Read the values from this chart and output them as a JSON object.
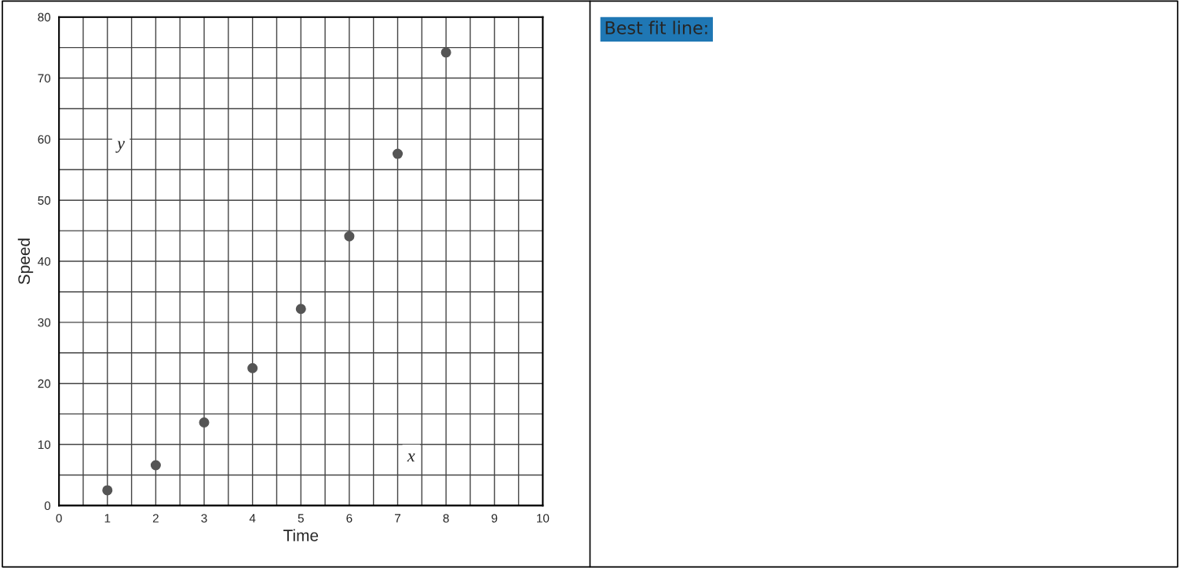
{
  "chart_data": {
    "type": "scatter",
    "xlabel": "Time",
    "ylabel": "Speed",
    "x": [
      1,
      2,
      3,
      4,
      5,
      6,
      7,
      8
    ],
    "series": [
      {
        "color": "#555555",
        "values": [
          2.5,
          6.6,
          13.6,
          22.5,
          32.2,
          44.1,
          57.6,
          74.2
        ]
      }
    ],
    "xlim": [
      0,
      10
    ],
    "ylim": [
      0,
      80
    ],
    "xticks": [
      0,
      {
        "value": 0.5,
        "label": null
      },
      1,
      {
        "value": 1.5,
        "label": null
      },
      2,
      {
        "value": 2.5,
        "label": null
      },
      3,
      {
        "value": 3.5,
        "label": null
      },
      4,
      {
        "value": 4.5,
        "label": null
      },
      5,
      {
        "value": 5.5,
        "label": null
      },
      6,
      {
        "value": 6.5,
        "label": null
      },
      7,
      {
        "value": 7.5,
        "label": null
      },
      8,
      {
        "value": 8.5,
        "label": null
      },
      9,
      {
        "value": 9.5,
        "label": null
      },
      10
    ],
    "yticks": [
      0,
      {
        "value": 5,
        "label": null
      },
      10,
      {
        "value": 15,
        "label": null
      },
      20,
      {
        "value": 25,
        "label": null
      },
      30,
      {
        "value": 35,
        "label": null
      },
      40,
      {
        "value": 45,
        "label": null
      },
      50,
      {
        "value": 55,
        "label": null
      },
      60,
      {
        "value": 65,
        "label": null
      },
      70,
      {
        "value": 75,
        "label": null
      },
      80
    ],
    "grid": true,
    "marker": "circle",
    "annotations": [
      "y",
      "x",
      "Best fit line:"
    ]
  }
}
